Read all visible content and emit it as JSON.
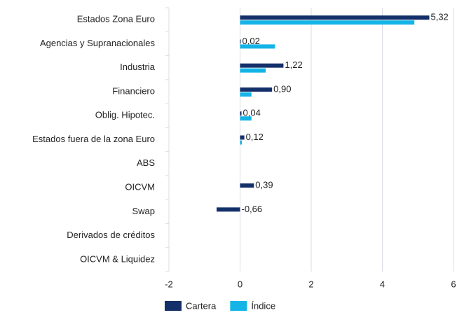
{
  "chart_data": {
    "type": "bar",
    "orientation": "horizontal",
    "categories": [
      "Estados Zona Euro",
      "Agencias y Supranacionales",
      "Industria",
      "Financiero",
      "Oblig. Hipotec.",
      "Estados fuera de la zona Euro",
      "ABS",
      "OICVM",
      "Swap",
      "Derivados de créditos",
      "OICVM & Liquidez"
    ],
    "series": [
      {
        "name": "Cartera",
        "color": "#14306a",
        "values": [
          5.32,
          0.02,
          1.22,
          0.9,
          0.04,
          0.12,
          null,
          0.39,
          -0.66,
          null,
          null
        ],
        "value_labels": [
          "5,32",
          "0,02",
          "1,22",
          "0,90",
          "0,04",
          "0,12",
          null,
          "0,39",
          "-0,66",
          null,
          null
        ]
      },
      {
        "name": "Índice",
        "color": "#14b4e6",
        "values": [
          4.9,
          0.98,
          0.72,
          0.32,
          0.32,
          0.05,
          null,
          null,
          null,
          null,
          null
        ]
      }
    ],
    "xlim": [
      -2,
      6
    ],
    "xticks": [
      -2,
      0,
      2,
      4,
      6
    ],
    "grid": true,
    "legend": "bottom"
  }
}
